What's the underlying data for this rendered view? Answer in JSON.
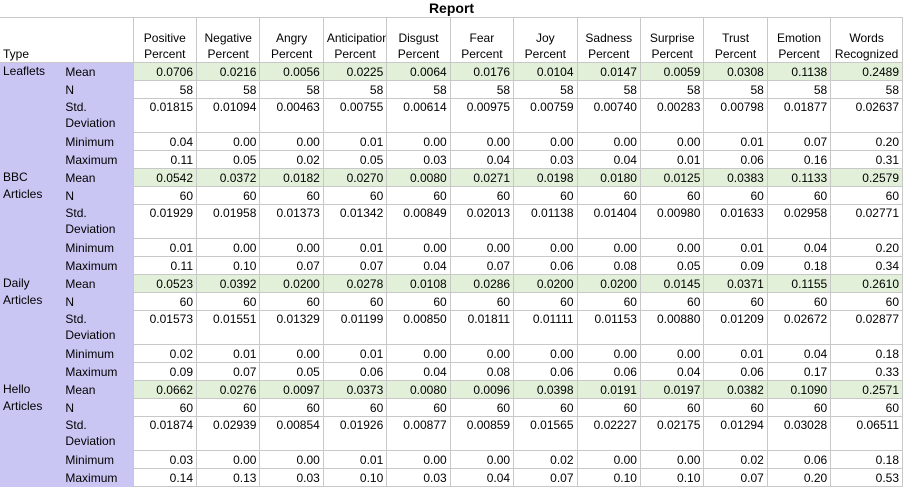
{
  "report": {
    "title": "Report",
    "type_header": "Type",
    "columns": [
      "Positive Percent",
      "Negative Percent",
      "Angry Percent",
      "Anticipation Percent",
      "Disgust Percent",
      "Fear Percent",
      "Joy Percent",
      "Sadness Percent",
      "Surprise Percent",
      "Trust Percent",
      "Emotion Percent",
      "Words Recognized"
    ],
    "groups": [
      {
        "name": "Leaflets",
        "rows": [
          {
            "stat": "Mean",
            "values": [
              "0.0706",
              "0.0216",
              "0.0056",
              "0.0225",
              "0.0064",
              "0.0176",
              "0.0104",
              "0.0147",
              "0.0059",
              "0.0308",
              "0.1138",
              "0.2489"
            ]
          },
          {
            "stat": "N",
            "values": [
              "58",
              "58",
              "58",
              "58",
              "58",
              "58",
              "58",
              "58",
              "58",
              "58",
              "58",
              "58"
            ]
          },
          {
            "stat": "Std. Deviation",
            "values": [
              "0.01815",
              "0.01094",
              "0.00463",
              "0.00755",
              "0.00614",
              "0.00975",
              "0.00759",
              "0.00740",
              "0.00283",
              "0.00798",
              "0.01877",
              "0.02637"
            ]
          },
          {
            "stat": "Minimum",
            "values": [
              "0.04",
              "0.00",
              "0.00",
              "0.01",
              "0.00",
              "0.00",
              "0.00",
              "0.00",
              "0.00",
              "0.01",
              "0.07",
              "0.20"
            ]
          },
          {
            "stat": "Maximum",
            "values": [
              "0.11",
              "0.05",
              "0.02",
              "0.05",
              "0.03",
              "0.04",
              "0.03",
              "0.04",
              "0.01",
              "0.06",
              "0.16",
              "0.31"
            ]
          }
        ]
      },
      {
        "name": "BBC Articles",
        "rows": [
          {
            "stat": "Mean",
            "values": [
              "0.0542",
              "0.0372",
              "0.0182",
              "0.0270",
              "0.0080",
              "0.0271",
              "0.0198",
              "0.0180",
              "0.0125",
              "0.0383",
              "0.1133",
              "0.2579"
            ]
          },
          {
            "stat": "N",
            "values": [
              "60",
              "60",
              "60",
              "60",
              "60",
              "60",
              "60",
              "60",
              "60",
              "60",
              "60",
              "60"
            ]
          },
          {
            "stat": "Std. Deviation",
            "values": [
              "0.01929",
              "0.01958",
              "0.01373",
              "0.01342",
              "0.00849",
              "0.02013",
              "0.01138",
              "0.01404",
              "0.00980",
              "0.01633",
              "0.02958",
              "0.02771"
            ]
          },
          {
            "stat": "Minimum",
            "values": [
              "0.01",
              "0.00",
              "0.00",
              "0.01",
              "0.00",
              "0.00",
              "0.00",
              "0.00",
              "0.00",
              "0.01",
              "0.04",
              "0.20"
            ]
          },
          {
            "stat": "Maximum",
            "values": [
              "0.11",
              "0.10",
              "0.07",
              "0.07",
              "0.04",
              "0.07",
              "0.06",
              "0.08",
              "0.05",
              "0.09",
              "0.18",
              "0.34"
            ]
          }
        ]
      },
      {
        "name": "Daily Articles",
        "rows": [
          {
            "stat": "Mean",
            "values": [
              "0.0523",
              "0.0392",
              "0.0200",
              "0.0278",
              "0.0108",
              "0.0286",
              "0.0200",
              "0.0200",
              "0.0145",
              "0.0371",
              "0.1155",
              "0.2610"
            ]
          },
          {
            "stat": "N",
            "values": [
              "60",
              "60",
              "60",
              "60",
              "60",
              "60",
              "60",
              "60",
              "60",
              "60",
              "60",
              "60"
            ]
          },
          {
            "stat": "Std. Deviation",
            "values": [
              "0.01573",
              "0.01551",
              "0.01329",
              "0.01199",
              "0.00850",
              "0.01811",
              "0.01111",
              "0.01153",
              "0.00880",
              "0.01209",
              "0.02672",
              "0.02877"
            ]
          },
          {
            "stat": "Minimum",
            "values": [
              "0.02",
              "0.01",
              "0.00",
              "0.01",
              "0.00",
              "0.00",
              "0.00",
              "0.00",
              "0.00",
              "0.01",
              "0.04",
              "0.18"
            ]
          },
          {
            "stat": "Maximum",
            "values": [
              "0.09",
              "0.07",
              "0.05",
              "0.06",
              "0.04",
              "0.08",
              "0.06",
              "0.06",
              "0.04",
              "0.06",
              "0.17",
              "0.33"
            ]
          }
        ]
      },
      {
        "name": "Hello Articles",
        "rows": [
          {
            "stat": "Mean",
            "values": [
              "0.0662",
              "0.0276",
              "0.0097",
              "0.0373",
              "0.0080",
              "0.0096",
              "0.0398",
              "0.0191",
              "0.0197",
              "0.0382",
              "0.1090",
              "0.2571"
            ]
          },
          {
            "stat": "N",
            "values": [
              "60",
              "60",
              "60",
              "60",
              "60",
              "60",
              "60",
              "60",
              "60",
              "60",
              "60",
              "60"
            ]
          },
          {
            "stat": "Std. Deviation",
            "values": [
              "0.01874",
              "0.02939",
              "0.00854",
              "0.01926",
              "0.00877",
              "0.00859",
              "0.01565",
              "0.02227",
              "0.02175",
              "0.01294",
              "0.03028",
              "0.06511"
            ]
          },
          {
            "stat": "Minimum",
            "values": [
              "0.03",
              "0.00",
              "0.00",
              "0.01",
              "0.00",
              "0.00",
              "0.02",
              "0.00",
              "0.00",
              "0.02",
              "0.06",
              "0.18"
            ]
          },
          {
            "stat": "Maximum",
            "values": [
              "0.14",
              "0.13",
              "0.03",
              "0.10",
              "0.03",
              "0.04",
              "0.07",
              "0.10",
              "0.10",
              "0.07",
              "0.20",
              "0.53"
            ]
          }
        ]
      }
    ]
  },
  "colors": {
    "group_bg": "#c9c6f3",
    "mean_row_bg": "#e2efd9",
    "grid_line": "#c8c8c8"
  }
}
